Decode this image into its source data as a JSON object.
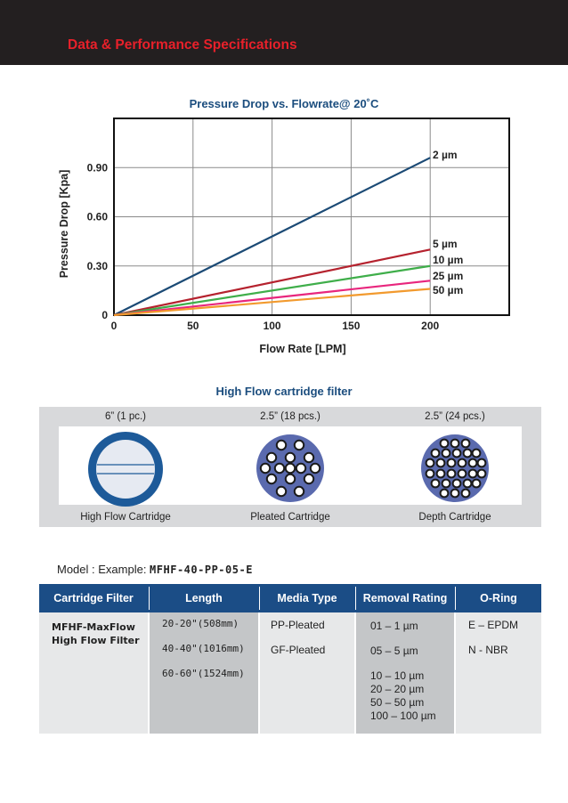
{
  "header": {
    "title": "Data & Performance Specifications"
  },
  "chart_data": {
    "type": "line",
    "title": "Pressure Drop vs. Flowrate@ 20˚C",
    "xlabel": "Flow Rate [LPM]",
    "ylabel": "Pressure Drop [Kpa]",
    "xlim": [
      0,
      250
    ],
    "ylim": [
      0,
      1.2
    ],
    "xticks": [
      "0",
      "50",
      "100",
      "150",
      "200"
    ],
    "yticks": [
      "0",
      "0.30",
      "0.60",
      "0.90"
    ],
    "xtick_values": [
      0,
      50,
      100,
      150,
      200
    ],
    "ytick_values": [
      0,
      0.3,
      0.6,
      0.9
    ],
    "grid": true,
    "series": [
      {
        "name": "2 µm",
        "color": "#1b4a75",
        "x": [
          0,
          200
        ],
        "y": [
          0,
          0.96
        ]
      },
      {
        "name": "5 µm",
        "color": "#b5222e",
        "x": [
          0,
          200
        ],
        "y": [
          0,
          0.4
        ]
      },
      {
        "name": "10 µm",
        "color": "#3fae4a",
        "x": [
          0,
          200
        ],
        "y": [
          0,
          0.3
        ]
      },
      {
        "name": "25 µm",
        "color": "#e8267d",
        "x": [
          0,
          200
        ],
        "y": [
          0,
          0.21
        ]
      },
      {
        "name": "50 µm",
        "color": "#f29a2e",
        "x": [
          0,
          200
        ],
        "y": [
          0,
          0.16
        ]
      }
    ]
  },
  "cartridges": {
    "title": "High Flow cartridge filter",
    "items": [
      {
        "size": "6” (1 pc.)",
        "name": "High Flow Cartridge",
        "icon": "high-flow-cartridge-icon"
      },
      {
        "size": "2.5” (18 pcs.)",
        "name": "Pleated Cartridge",
        "icon": "pleated-cartridge-icon"
      },
      {
        "size": "2.5” (24 pcs.)",
        "name": "Depth Cartridge",
        "icon": "depth-cartridge-icon"
      }
    ]
  },
  "model": {
    "label": "Model : Example: ",
    "code": "MFHF-40-PP-05-E"
  },
  "table": {
    "headers": [
      "Cartridge Filter",
      "Length",
      "Media Type",
      "Removal Rating",
      "O-Ring"
    ],
    "cartridge_filter": [
      "MFHF-MaxFlow",
      "High Flow Filter"
    ],
    "length": [
      "20-20\"(508mm)",
      "40-40\"(1016mm)",
      "60-60\"(1524mm)"
    ],
    "media_type": [
      "PP-Pleated",
      "GF-Pleated"
    ],
    "removal_rating": [
      "01 – 1 µm",
      "05 – 5 µm",
      "10 – 10 µm",
      "20 – 20 µm",
      "50 – 50 µm",
      "100 – 100 µm"
    ],
    "o_ring": [
      "E – EPDM",
      "N - NBR"
    ]
  },
  "colors": {
    "header_bg": "#231f20",
    "header_text": "#e8202a",
    "navy": "#1b4d86",
    "cartridge_blue": "#1d5a99",
    "cartridge_fill": "#5a6aae"
  }
}
